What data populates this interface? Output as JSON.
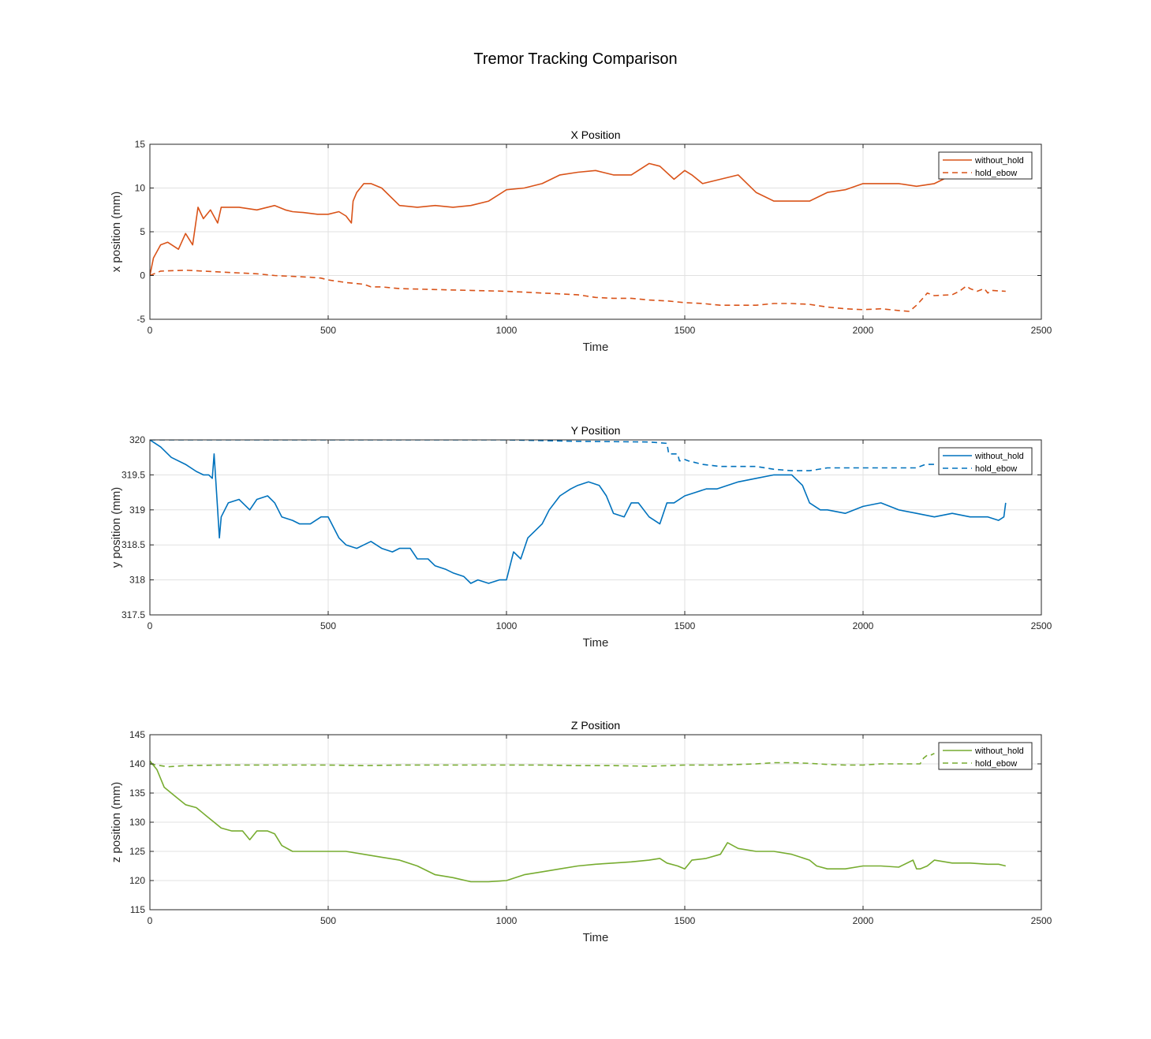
{
  "figure": {
    "title": "Tremor Tracking Comparison"
  },
  "colors": {
    "x": "#D95319",
    "y": "#0072BD",
    "z": "#77AC30",
    "grid": "#e1e1e1",
    "axis": "#262626"
  },
  "chart_data": [
    {
      "type": "line",
      "title": "X Position",
      "xlabel": "Time",
      "ylabel": "x position (mm)",
      "xlim": [
        0,
        2500
      ],
      "ylim": [
        -5,
        15
      ],
      "xticks": [
        0,
        500,
        1000,
        1500,
        2000,
        2500
      ],
      "yticks": [
        -5,
        0,
        5,
        10,
        15
      ],
      "grid": true,
      "legend": "top-right",
      "color_key": "x",
      "series": [
        {
          "name": "without_hold",
          "style": "solid",
          "x": [
            0,
            10,
            30,
            50,
            80,
            100,
            120,
            135,
            150,
            170,
            190,
            200,
            220,
            250,
            300,
            350,
            380,
            400,
            430,
            470,
            500,
            530,
            550,
            565,
            570,
            580,
            600,
            620,
            650,
            700,
            750,
            800,
            850,
            900,
            950,
            1000,
            1050,
            1100,
            1150,
            1200,
            1250,
            1300,
            1350,
            1400,
            1430,
            1470,
            1500,
            1520,
            1550,
            1600,
            1650,
            1700,
            1750,
            1800,
            1850,
            1900,
            1950,
            2000,
            2050,
            2100,
            2150,
            2200,
            2250,
            2300,
            2350,
            2400
          ],
          "y": [
            0,
            2,
            3.5,
            3.8,
            3,
            4.8,
            3.5,
            7.8,
            6.5,
            7.5,
            6,
            7.8,
            7.8,
            7.8,
            7.5,
            8,
            7.5,
            7.3,
            7.2,
            7,
            7,
            7.3,
            6.8,
            6,
            8.5,
            9.5,
            10.5,
            10.5,
            10,
            8,
            7.8,
            8,
            7.8,
            8,
            8.5,
            9.8,
            10,
            10.5,
            11.5,
            11.8,
            12,
            11.5,
            11.5,
            12.8,
            12.5,
            11,
            12,
            11.5,
            10.5,
            11,
            11.5,
            9.5,
            8.5,
            8.5,
            8.5,
            9.5,
            9.8,
            10.5,
            10.5,
            10.5,
            10.2,
            10.5,
            11.5,
            12.5,
            13.2,
            14
          ]
        },
        {
          "name": "hold_ebow",
          "style": "dashed",
          "x": [
            0,
            30,
            100,
            150,
            200,
            300,
            350,
            400,
            450,
            480,
            500,
            550,
            600,
            620,
            650,
            700,
            800,
            900,
            1000,
            1100,
            1200,
            1250,
            1300,
            1350,
            1400,
            1450,
            1500,
            1550,
            1600,
            1650,
            1700,
            1750,
            1800,
            1850,
            1900,
            1950,
            2000,
            2050,
            2100,
            2130,
            2150,
            2170,
            2180,
            2200,
            2250,
            2270,
            2290,
            2300,
            2320,
            2340,
            2350,
            2360,
            2400
          ],
          "y": [
            0,
            0.5,
            0.6,
            0.5,
            0.4,
            0.2,
            0,
            -0.1,
            -0.2,
            -0.3,
            -0.5,
            -0.8,
            -1,
            -1.3,
            -1.3,
            -1.5,
            -1.6,
            -1.7,
            -1.8,
            -2,
            -2.2,
            -2.5,
            -2.6,
            -2.6,
            -2.8,
            -2.9,
            -3.1,
            -3.2,
            -3.4,
            -3.4,
            -3.4,
            -3.2,
            -3.2,
            -3.3,
            -3.6,
            -3.8,
            -3.9,
            -3.8,
            -4,
            -4.1,
            -3.4,
            -2.5,
            -2,
            -2.3,
            -2.2,
            -1.8,
            -1.2,
            -1.5,
            -1.8,
            -1.5,
            -2,
            -1.7,
            -1.8
          ]
        }
      ]
    },
    {
      "type": "line",
      "title": "Y Position",
      "xlabel": "Time",
      "ylabel": "y position (mm)",
      "xlim": [
        0,
        2500
      ],
      "ylim": [
        317.5,
        320
      ],
      "xticks": [
        0,
        500,
        1000,
        1500,
        2000,
        2500
      ],
      "yticks": [
        317.5,
        318,
        318.5,
        319,
        319.5,
        320
      ],
      "grid": true,
      "legend": "top-right",
      "color_key": "y",
      "series": [
        {
          "name": "without_hold",
          "style": "solid",
          "x": [
            0,
            30,
            60,
            100,
            130,
            150,
            165,
            175,
            180,
            190,
            195,
            200,
            220,
            250,
            280,
            300,
            330,
            350,
            370,
            400,
            420,
            450,
            480,
            500,
            530,
            550,
            580,
            600,
            620,
            650,
            680,
            700,
            730,
            750,
            780,
            800,
            830,
            850,
            880,
            900,
            920,
            950,
            980,
            1000,
            1020,
            1040,
            1060,
            1080,
            1100,
            1120,
            1150,
            1180,
            1200,
            1230,
            1260,
            1280,
            1300,
            1330,
            1350,
            1370,
            1400,
            1430,
            1450,
            1470,
            1500,
            1530,
            1560,
            1590,
            1620,
            1650,
            1700,
            1750,
            1780,
            1800,
            1830,
            1850,
            1880,
            1900,
            1950,
            2000,
            2050,
            2100,
            2150,
            2200,
            2250,
            2300,
            2350,
            2380,
            2395,
            2400
          ],
          "y": [
            320,
            319.9,
            319.75,
            319.65,
            319.55,
            319.5,
            319.5,
            319.45,
            319.8,
            319,
            318.6,
            318.9,
            319.1,
            319.15,
            319,
            319.15,
            319.2,
            319.1,
            318.9,
            318.85,
            318.8,
            318.8,
            318.9,
            318.9,
            318.6,
            318.5,
            318.45,
            318.5,
            318.55,
            318.45,
            318.4,
            318.45,
            318.45,
            318.3,
            318.3,
            318.2,
            318.15,
            318.1,
            318.05,
            317.95,
            318,
            317.95,
            318,
            318,
            318.4,
            318.3,
            318.6,
            318.7,
            318.8,
            319,
            319.2,
            319.3,
            319.35,
            319.4,
            319.35,
            319.2,
            318.95,
            318.9,
            319.1,
            319.1,
            318.9,
            318.8,
            319.1,
            319.1,
            319.2,
            319.25,
            319.3,
            319.3,
            319.35,
            319.4,
            319.45,
            319.5,
            319.5,
            319.5,
            319.35,
            319.1,
            319,
            319,
            318.95,
            319.05,
            319.1,
            319,
            318.95,
            318.9,
            318.95,
            318.9,
            318.9,
            318.85,
            318.9,
            319.1
          ]
        },
        {
          "name": "hold_ebow",
          "style": "dashed",
          "x": [
            0,
            500,
            1000,
            1200,
            1400,
            1450,
            1455,
            1480,
            1485,
            1490,
            1500,
            1510,
            1550,
            1600,
            1700,
            1750,
            1800,
            1850,
            1900,
            2000,
            2100,
            2150,
            2175,
            2200
          ],
          "y": [
            320,
            320,
            320,
            319.98,
            319.97,
            319.95,
            319.8,
            319.8,
            319.7,
            319.7,
            319.72,
            319.7,
            319.65,
            319.62,
            319.62,
            319.58,
            319.56,
            319.56,
            319.6,
            319.6,
            319.6,
            319.6,
            319.65,
            319.65
          ]
        }
      ]
    },
    {
      "type": "line",
      "title": "Z Position",
      "xlabel": "Time",
      "ylabel": "z position (mm)",
      "xlim": [
        0,
        2500
      ],
      "ylim": [
        115,
        145
      ],
      "xticks": [
        0,
        500,
        1000,
        1500,
        2000,
        2500
      ],
      "yticks": [
        115,
        120,
        125,
        130,
        135,
        140,
        145
      ],
      "grid": true,
      "legend": "top-right",
      "color_key": "z",
      "series": [
        {
          "name": "without_hold",
          "style": "solid",
          "x": [
            0,
            20,
            40,
            70,
            100,
            130,
            160,
            180,
            200,
            230,
            260,
            280,
            300,
            330,
            350,
            370,
            400,
            450,
            500,
            550,
            600,
            650,
            700,
            750,
            800,
            850,
            900,
            950,
            1000,
            1050,
            1100,
            1150,
            1200,
            1250,
            1300,
            1350,
            1400,
            1430,
            1450,
            1480,
            1500,
            1520,
            1560,
            1600,
            1620,
            1650,
            1700,
            1750,
            1800,
            1850,
            1870,
            1900,
            1950,
            2000,
            2050,
            2100,
            2140,
            2150,
            2160,
            2180,
            2200,
            2250,
            2300,
            2350,
            2380,
            2400
          ],
          "y": [
            140.5,
            139,
            136,
            134.5,
            133,
            132.5,
            131,
            130,
            129,
            128.5,
            128.5,
            127,
            128.5,
            128.5,
            128,
            126,
            125,
            125,
            125,
            125,
            124.5,
            124,
            123.5,
            122.5,
            121,
            120.5,
            119.8,
            119.8,
            120,
            121,
            121.5,
            122,
            122.5,
            122.8,
            123,
            123.2,
            123.5,
            123.8,
            123,
            122.5,
            122,
            123.5,
            123.8,
            124.5,
            126.5,
            125.5,
            125,
            125,
            124.5,
            123.5,
            122.5,
            122,
            122,
            122.5,
            122.5,
            122.3,
            123.5,
            122,
            122,
            122.5,
            123.5,
            123,
            123,
            122.8,
            122.8,
            122.5
          ]
        },
        {
          "name": "hold_ebow",
          "style": "dashed",
          "x": [
            0,
            20,
            50,
            100,
            200,
            300,
            400,
            500,
            600,
            700,
            800,
            900,
            1000,
            1100,
            1200,
            1300,
            1400,
            1500,
            1600,
            1700,
            1750,
            1800,
            1850,
            1900,
            1950,
            2000,
            2050,
            2100,
            2150,
            2160,
            2170,
            2180,
            2190,
            2200
          ],
          "y": [
            140,
            139.8,
            139.5,
            139.7,
            139.8,
            139.8,
            139.8,
            139.8,
            139.7,
            139.8,
            139.8,
            139.8,
            139.8,
            139.8,
            139.7,
            139.7,
            139.6,
            139.8,
            139.8,
            140,
            140.2,
            140.2,
            140.1,
            139.9,
            139.8,
            139.8,
            140,
            140,
            140,
            140,
            141,
            141.5,
            141.5,
            141.8
          ]
        }
      ]
    }
  ]
}
